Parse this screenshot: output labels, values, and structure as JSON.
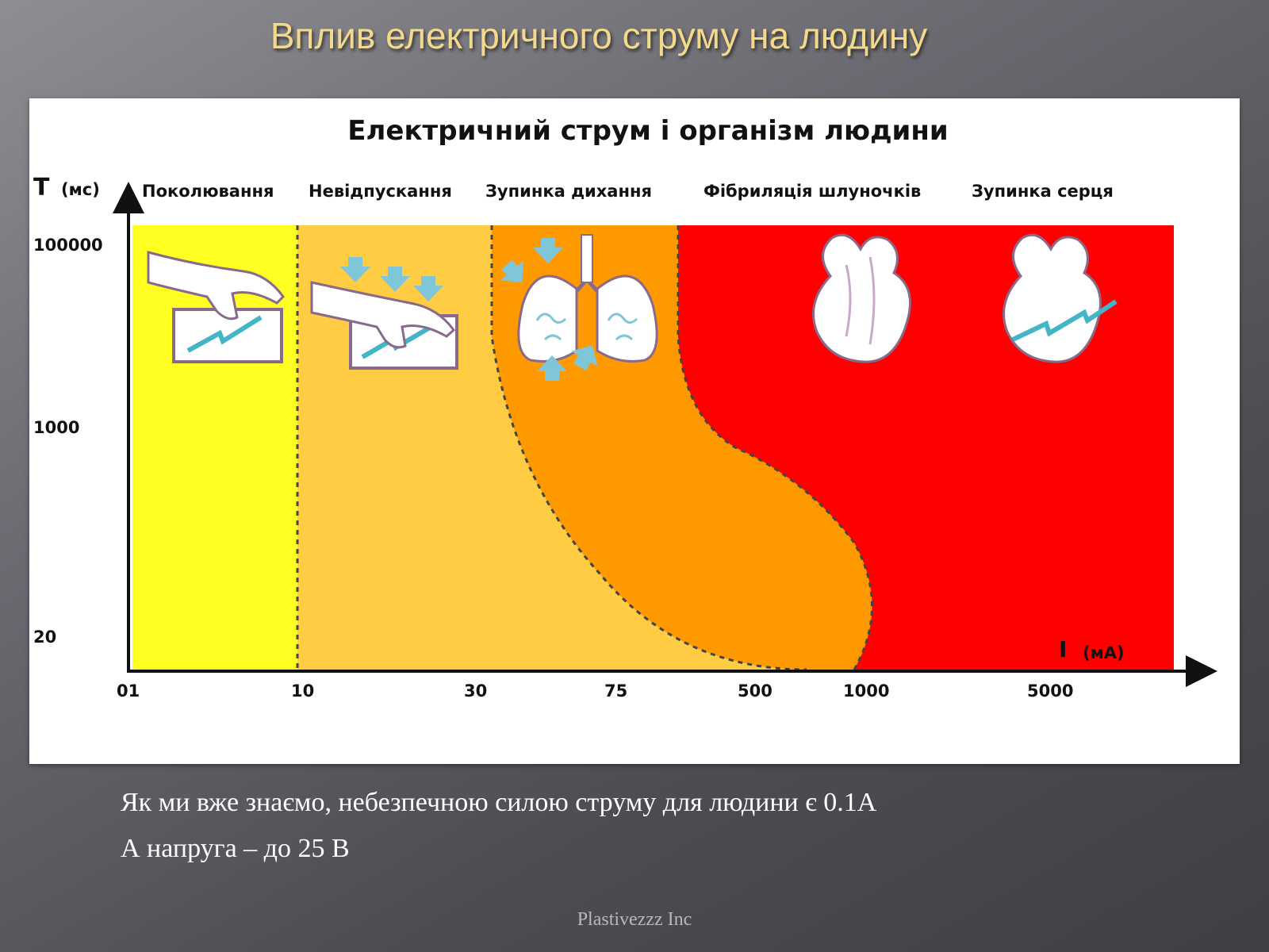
{
  "slide": {
    "title": "Вплив електричного струму на людину",
    "body_lines": [
      "Як ми вже знаємо, небезпечною силою струму для людини є 0.1А",
      "А напруга – до 25 В"
    ],
    "footer": "Plastivezzz Inc"
  },
  "figure": {
    "title": "Електричний струм і організм людини",
    "y_axis": {
      "letter": "T",
      "unit": "(мс)",
      "ticks": [
        "100000",
        "1000",
        "20"
      ]
    },
    "x_axis": {
      "letter": "I",
      "unit": "(мА)",
      "ticks": [
        "01",
        "10",
        "30",
        "75",
        "500",
        "1000",
        "5000"
      ]
    },
    "zones": [
      {
        "label": "Поколювання",
        "color": "#ffff22",
        "icon": "hand-shock-icon"
      },
      {
        "label": "Невідпускання",
        "color": "#ffcc44",
        "icon": "hand-grip-shock-icon"
      },
      {
        "label": "Зупинка дихання",
        "color": "#ff9900",
        "icon": "lungs-icon"
      },
      {
        "label": "Фібриляція шлуночків",
        "color": "#ff0000",
        "icon": "heart-icon"
      },
      {
        "label": "Зупинка серця",
        "color": "#ff0000",
        "icon": "heart-shock-icon"
      }
    ]
  }
}
